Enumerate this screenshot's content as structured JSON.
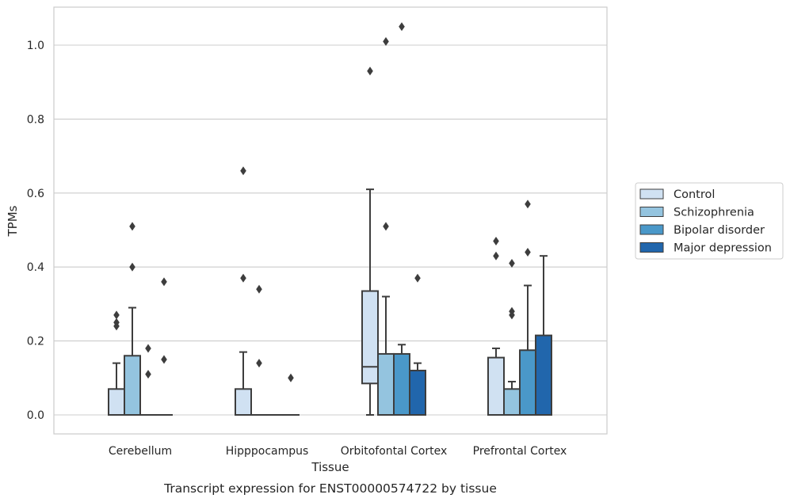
{
  "chart_data": {
    "type": "box",
    "title": "",
    "caption": "Transcript expression for ENST00000574722 by tissue",
    "xlabel": "Tissue",
    "ylabel": "TPMs",
    "ylim": [
      -0.05,
      1.1
    ],
    "yticks": [
      0.0,
      0.2,
      0.4,
      0.6,
      0.8,
      1.0
    ],
    "ytick_labels": [
      "0.0",
      "0.2",
      "0.4",
      "0.6",
      "0.8",
      "1.0"
    ],
    "grid": "horizontal",
    "legend_position": "right",
    "categories": [
      "Cerebellum",
      "Hipppocampus",
      "Orbitofontal Cortex",
      "Prefrontal Cortex"
    ],
    "series": [
      {
        "name": "Control",
        "color": "#d0e1f2",
        "boxes": [
          {
            "q1": 0.0,
            "median": 0.0,
            "q3": 0.07,
            "whisker_low": 0.0,
            "whisker_high": 0.14,
            "outliers": [
              0.27,
              0.25,
              0.24
            ]
          },
          {
            "q1": 0.0,
            "median": 0.0,
            "q3": 0.07,
            "whisker_low": 0.0,
            "whisker_high": 0.17,
            "outliers": [
              0.66,
              0.37
            ]
          },
          {
            "q1": 0.085,
            "median": 0.13,
            "q3": 0.335,
            "whisker_low": 0.0,
            "whisker_high": 0.61,
            "outliers": [
              0.93
            ]
          },
          {
            "q1": 0.0,
            "median": 0.0,
            "q3": 0.155,
            "whisker_low": 0.0,
            "whisker_high": 0.18,
            "outliers": [
              0.47,
              0.43
            ]
          }
        ]
      },
      {
        "name": "Schizophrenia",
        "color": "#94c4df",
        "boxes": [
          {
            "q1": 0.0,
            "median": 0.0,
            "q3": 0.16,
            "whisker_low": 0.0,
            "whisker_high": 0.29,
            "outliers": [
              0.51,
              0.4
            ]
          },
          {
            "q1": 0.0,
            "median": 0.0,
            "q3": 0.0,
            "whisker_low": 0.0,
            "whisker_high": 0.0,
            "outliers": [
              0.34,
              0.14
            ]
          },
          {
            "q1": 0.0,
            "median": 0.0,
            "q3": 0.165,
            "whisker_low": 0.0,
            "whisker_high": 0.32,
            "outliers": [
              1.01,
              0.51
            ]
          },
          {
            "q1": 0.0,
            "median": 0.0,
            "q3": 0.07,
            "whisker_low": 0.0,
            "whisker_high": 0.09,
            "outliers": [
              0.41,
              0.28,
              0.27
            ]
          }
        ]
      },
      {
        "name": "Bipolar disorder",
        "color": "#4a98c9",
        "boxes": [
          {
            "q1": 0.0,
            "median": 0.0,
            "q3": 0.0,
            "whisker_low": 0.0,
            "whisker_high": 0.0,
            "outliers": [
              0.18,
              0.11
            ]
          },
          {
            "q1": 0.0,
            "median": 0.0,
            "q3": 0.0,
            "whisker_low": 0.0,
            "whisker_high": 0.0,
            "outliers": []
          },
          {
            "q1": 0.0,
            "median": 0.0,
            "q3": 0.165,
            "whisker_low": 0.0,
            "whisker_high": 0.19,
            "outliers": [
              1.05
            ]
          },
          {
            "q1": 0.0,
            "median": 0.0,
            "q3": 0.175,
            "whisker_low": 0.0,
            "whisker_high": 0.35,
            "outliers": [
              0.57,
              0.44
            ]
          }
        ]
      },
      {
        "name": "Major depression",
        "color": "#2166ac",
        "boxes": [
          {
            "q1": 0.0,
            "median": 0.0,
            "q3": 0.0,
            "whisker_low": 0.0,
            "whisker_high": 0.0,
            "outliers": [
              0.36,
              0.15
            ]
          },
          {
            "q1": 0.0,
            "median": 0.0,
            "q3": 0.0,
            "whisker_low": 0.0,
            "whisker_high": 0.0,
            "outliers": [
              0.1
            ]
          },
          {
            "q1": 0.0,
            "median": 0.0,
            "q3": 0.12,
            "whisker_low": 0.0,
            "whisker_high": 0.14,
            "outliers": [
              0.37
            ]
          },
          {
            "q1": 0.0,
            "median": 0.0,
            "q3": 0.215,
            "whisker_low": 0.0,
            "whisker_high": 0.43,
            "outliers": []
          }
        ]
      }
    ]
  }
}
